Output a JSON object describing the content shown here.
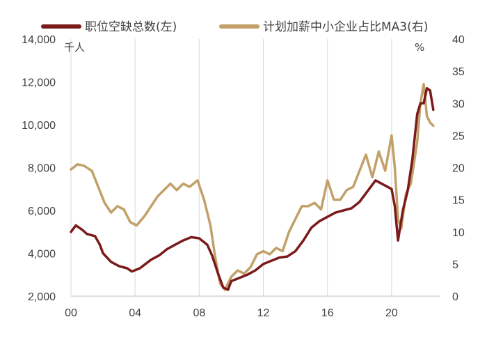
{
  "chart_data": {
    "type": "line",
    "legend_position": "top",
    "grid": "vertical",
    "left_axis": {
      "unit": "千人",
      "ylim": [
        2000,
        14000
      ],
      "ticks": [
        2000,
        4000,
        6000,
        8000,
        10000,
        12000,
        14000
      ],
      "tick_labels": [
        "2,000",
        "4,000",
        "6,000",
        "8,000",
        "10,000",
        "12,000",
        "14,000"
      ]
    },
    "right_axis": {
      "unit": "%",
      "ylim": [
        0,
        40
      ],
      "ticks": [
        0,
        5,
        10,
        15,
        20,
        25,
        30,
        35,
        40
      ],
      "tick_labels": [
        "0",
        "5",
        "10",
        "15",
        "20",
        "25",
        "30",
        "35",
        "40"
      ]
    },
    "x_axis": {
      "xlim": [
        2000,
        2023
      ],
      "ticks": [
        2000,
        2004,
        2008,
        2012,
        2016,
        2020
      ],
      "tick_labels": [
        "00",
        "04",
        "08",
        "12",
        "16",
        "20"
      ]
    },
    "series": [
      {
        "name": "职位空缺总数(左)",
        "axis": "left",
        "color": "#7a1a1a",
        "points": [
          [
            2000.0,
            5000
          ],
          [
            2000.3,
            5300
          ],
          [
            2000.7,
            5100
          ],
          [
            2001.0,
            4900
          ],
          [
            2001.5,
            4800
          ],
          [
            2001.8,
            4400
          ],
          [
            2002.0,
            4000
          ],
          [
            2002.5,
            3600
          ],
          [
            2003.0,
            3400
          ],
          [
            2003.5,
            3300
          ],
          [
            2003.8,
            3150
          ],
          [
            2004.3,
            3300
          ],
          [
            2005.0,
            3700
          ],
          [
            2005.5,
            3900
          ],
          [
            2006.0,
            4200
          ],
          [
            2006.5,
            4400
          ],
          [
            2007.0,
            4600
          ],
          [
            2007.5,
            4750
          ],
          [
            2008.0,
            4700
          ],
          [
            2008.5,
            4400
          ],
          [
            2008.8,
            3900
          ],
          [
            2009.2,
            3000
          ],
          [
            2009.5,
            2400
          ],
          [
            2009.8,
            2300
          ],
          [
            2010.0,
            2700
          ],
          [
            2010.5,
            2850
          ],
          [
            2011.0,
            3000
          ],
          [
            2011.5,
            3200
          ],
          [
            2012.0,
            3500
          ],
          [
            2012.5,
            3650
          ],
          [
            2013.0,
            3800
          ],
          [
            2013.5,
            3850
          ],
          [
            2014.0,
            4100
          ],
          [
            2014.5,
            4600
          ],
          [
            2015.0,
            5200
          ],
          [
            2015.5,
            5500
          ],
          [
            2016.0,
            5700
          ],
          [
            2016.5,
            5900
          ],
          [
            2017.0,
            6000
          ],
          [
            2017.5,
            6100
          ],
          [
            2018.0,
            6400
          ],
          [
            2018.5,
            6900
          ],
          [
            2019.0,
            7400
          ],
          [
            2019.5,
            7200
          ],
          [
            2020.0,
            7000
          ],
          [
            2020.2,
            6200
          ],
          [
            2020.4,
            4600
          ],
          [
            2020.7,
            6000
          ],
          [
            2021.0,
            6900
          ],
          [
            2021.3,
            8400
          ],
          [
            2021.6,
            10500
          ],
          [
            2021.8,
            11000
          ],
          [
            2022.0,
            11000
          ],
          [
            2022.2,
            11700
          ],
          [
            2022.4,
            11600
          ],
          [
            2022.6,
            10700
          ]
        ]
      },
      {
        "name": "计划加薪中小企业占比MA3(右)",
        "axis": "right",
        "color": "#c2a06a",
        "points": [
          [
            2000.0,
            19.7
          ],
          [
            2000.4,
            20.5
          ],
          [
            2000.8,
            20.3
          ],
          [
            2001.3,
            19.5
          ],
          [
            2001.7,
            17.0
          ],
          [
            2002.1,
            14.5
          ],
          [
            2002.5,
            13.0
          ],
          [
            2002.9,
            14.0
          ],
          [
            2003.3,
            13.5
          ],
          [
            2003.7,
            11.5
          ],
          [
            2004.1,
            11.0
          ],
          [
            2004.6,
            12.5
          ],
          [
            2005.0,
            14.0
          ],
          [
            2005.4,
            15.5
          ],
          [
            2005.8,
            16.5
          ],
          [
            2006.2,
            17.5
          ],
          [
            2006.6,
            16.5
          ],
          [
            2007.0,
            17.5
          ],
          [
            2007.4,
            17.0
          ],
          [
            2007.9,
            18.0
          ],
          [
            2008.3,
            15.0
          ],
          [
            2008.7,
            11.0
          ],
          [
            2009.0,
            6.0
          ],
          [
            2009.3,
            2.0
          ],
          [
            2009.6,
            1.0
          ],
          [
            2010.0,
            3.0
          ],
          [
            2010.4,
            4.0
          ],
          [
            2010.8,
            3.5
          ],
          [
            2011.2,
            4.5
          ],
          [
            2011.6,
            6.5
          ],
          [
            2012.0,
            7.0
          ],
          [
            2012.4,
            6.5
          ],
          [
            2012.8,
            7.5
          ],
          [
            2013.2,
            7.0
          ],
          [
            2013.6,
            10.0
          ],
          [
            2014.0,
            12.0
          ],
          [
            2014.4,
            14.0
          ],
          [
            2014.8,
            14.0
          ],
          [
            2015.2,
            14.5
          ],
          [
            2015.6,
            13.5
          ],
          [
            2016.0,
            18.0
          ],
          [
            2016.4,
            15.0
          ],
          [
            2016.8,
            15.0
          ],
          [
            2017.2,
            16.5
          ],
          [
            2017.6,
            17.0
          ],
          [
            2018.0,
            19.5
          ],
          [
            2018.4,
            22.0
          ],
          [
            2018.8,
            18.5
          ],
          [
            2019.2,
            22.5
          ],
          [
            2019.6,
            19.5
          ],
          [
            2020.0,
            25.0
          ],
          [
            2020.2,
            20.0
          ],
          [
            2020.4,
            12.0
          ],
          [
            2020.6,
            10.5
          ],
          [
            2020.9,
            16.0
          ],
          [
            2021.2,
            17.5
          ],
          [
            2021.6,
            24.0
          ],
          [
            2021.8,
            30.0
          ],
          [
            2022.0,
            33.0
          ],
          [
            2022.2,
            28.0
          ],
          [
            2022.4,
            27.0
          ],
          [
            2022.6,
            26.5
          ]
        ]
      }
    ]
  }
}
